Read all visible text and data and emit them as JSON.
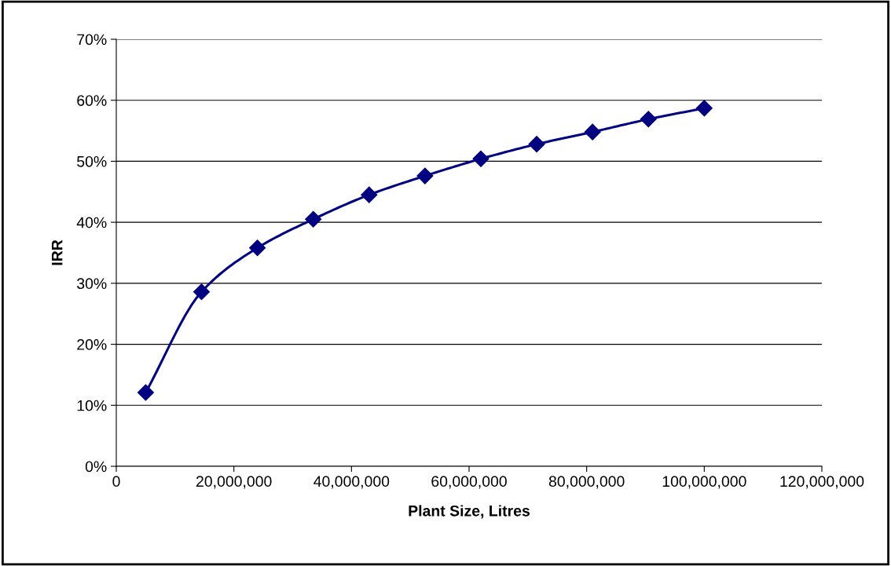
{
  "chart_data": {
    "type": "line",
    "xlabel": "Plant Size, Litres",
    "ylabel": "IRR",
    "x": [
      5000000,
      14500000,
      24000000,
      33500000,
      43000000,
      52500000,
      62000000,
      71500000,
      81000000,
      90500000,
      100000000
    ],
    "series": [
      {
        "color": "#000080",
        "values": [
          12.1,
          28.6,
          35.8,
          40.5,
          44.5,
          47.6,
          50.4,
          52.8,
          54.8,
          56.9,
          58.7
        ]
      }
    ],
    "xlim": [
      0,
      120000000
    ],
    "xticks": [
      {
        "value": 0,
        "label": "0"
      },
      {
        "value": 20000000,
        "label": "20,000,000"
      },
      {
        "value": 40000000,
        "label": "40,000,000"
      },
      {
        "value": 60000000,
        "label": "60,000,000"
      },
      {
        "value": 80000000,
        "label": "80,000,000"
      },
      {
        "value": 100000000,
        "label": "100,000,000"
      },
      {
        "value": 120000000,
        "label": "120,000,000"
      }
    ],
    "ylim": [
      0,
      70
    ],
    "yticks": [
      {
        "value": 0,
        "label": "0%"
      },
      {
        "value": 10,
        "label": "10%"
      },
      {
        "value": 20,
        "label": "20%"
      },
      {
        "value": 30,
        "label": "30%"
      },
      {
        "value": 40,
        "label": "40%"
      },
      {
        "value": 50,
        "label": "50%"
      },
      {
        "value": 60,
        "label": "60%"
      },
      {
        "value": 70,
        "label": "70%"
      }
    ],
    "grid": "y",
    "marker": "diamond",
    "line_style": "solid"
  }
}
